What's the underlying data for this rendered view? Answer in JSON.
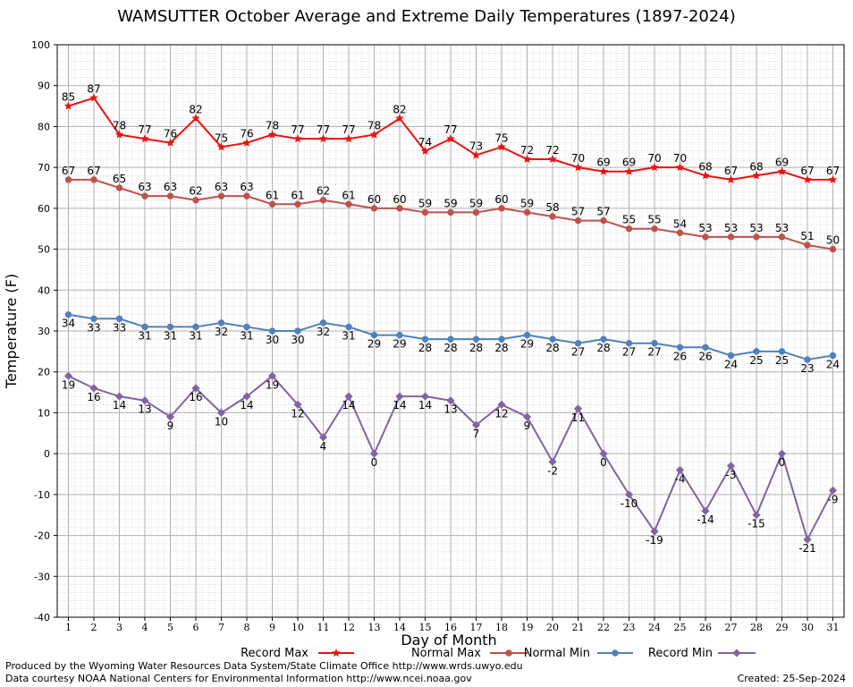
{
  "chart_data": {
    "type": "line",
    "title": "WAMSUTTER October Average and Extreme Daily Temperatures (1897-2024)",
    "xlabel": "Day of Month",
    "ylabel": "Temperature (F)",
    "ylim": [
      -40,
      100
    ],
    "yticks": [
      -40,
      -30,
      -20,
      -10,
      0,
      10,
      20,
      30,
      40,
      50,
      60,
      70,
      80,
      90,
      100
    ],
    "x": [
      1,
      2,
      3,
      4,
      5,
      6,
      7,
      8,
      9,
      10,
      11,
      12,
      13,
      14,
      15,
      16,
      17,
      18,
      19,
      20,
      21,
      22,
      23,
      24,
      25,
      26,
      27,
      28,
      29,
      30,
      31
    ],
    "grid": true,
    "legend_position": "bottom",
    "series": [
      {
        "name": "Record Max",
        "color": "#ee1111",
        "marker": "star",
        "label_position": "above",
        "values": [
          85,
          87,
          78,
          77,
          76,
          82,
          75,
          76,
          78,
          77,
          77,
          77,
          78,
          82,
          74,
          77,
          73,
          75,
          72,
          72,
          70,
          69,
          69,
          70,
          70,
          68,
          67,
          68,
          69,
          67,
          67
        ]
      },
      {
        "name": "Normal Max",
        "color": "#c0504d",
        "marker": "circle",
        "label_position": "above",
        "values": [
          67,
          67,
          65,
          63,
          63,
          62,
          63,
          63,
          61,
          61,
          62,
          61,
          60,
          60,
          59,
          59,
          59,
          60,
          59,
          58,
          57,
          57,
          55,
          55,
          54,
          53,
          53,
          53,
          53,
          51,
          50
        ]
      },
      {
        "name": "Normal Min",
        "color": "#4f81bd",
        "marker": "circle",
        "label_position": "below",
        "values": [
          34,
          33,
          33,
          31,
          31,
          31,
          32,
          31,
          30,
          30,
          32,
          31,
          29,
          29,
          28,
          28,
          28,
          28,
          29,
          28,
          27,
          28,
          27,
          27,
          26,
          26,
          24,
          25,
          25,
          23,
          24
        ]
      },
      {
        "name": "Record Min",
        "color": "#8064a2",
        "marker": "diamond",
        "label_position": "below",
        "values": [
          19,
          16,
          14,
          13,
          9,
          16,
          10,
          14,
          19,
          12,
          4,
          14,
          0,
          14,
          14,
          13,
          7,
          12,
          9,
          -2,
          11,
          0,
          -10,
          -19,
          -4,
          -14,
          -3,
          -15,
          0,
          -21,
          -9
        ]
      }
    ]
  },
  "footer": {
    "produced_by": "Produced by the Wyoming Water Resources Data System/State Climate Office http://www.wrds.uwyo.edu",
    "data_courtesy": "Data courtesy NOAA National Centers for Environmental Information http://www.ncei.noaa.gov",
    "created": "Created:  25-Sep-2024"
  }
}
